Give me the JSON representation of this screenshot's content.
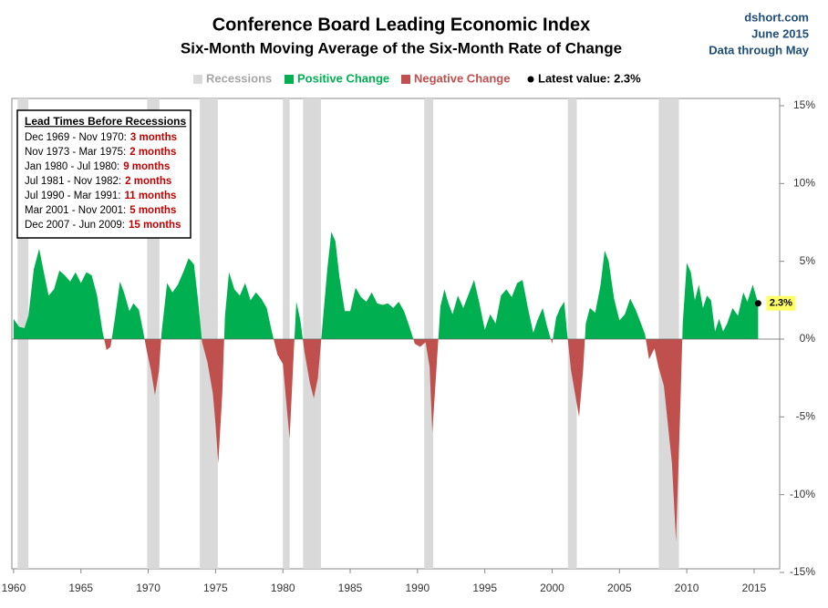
{
  "chart_data": {
    "type": "area",
    "title": "Conference Board Leading Economic Index",
    "subtitle": "Six-Month  Moving Average of the Six-Month  Rate of Change",
    "source": [
      "dshort.com",
      "June 2015",
      "Data through May"
    ],
    "legend": {
      "recessions": "Recessions",
      "positive": "Positive Change",
      "negative": "Negative Change",
      "latest": "Latest value: 2.3%"
    },
    "colors": {
      "positive": "#00b050",
      "negative": "#c0504d",
      "recession": "#d9d9d9",
      "latest": "#000000"
    },
    "recessions": [
      [
        1960.3,
        1961.1
      ],
      [
        1969.92,
        1970.83
      ],
      [
        1973.83,
        1975.17
      ],
      [
        1980.0,
        1980.5
      ],
      [
        1981.5,
        1982.83
      ],
      [
        1990.5,
        1991.17
      ],
      [
        2001.17,
        2001.83
      ],
      [
        2007.92,
        2009.42
      ]
    ],
    "lead_times": {
      "title": "Lead Times Before Recessions",
      "rows": [
        [
          "Dec 1969 - Nov 1970:",
          "3 months"
        ],
        [
          "Nov 1973 - Mar 1975:",
          "2 months"
        ],
        [
          "Jan 1980 - Jul 1980:",
          "9 months"
        ],
        [
          "Jul 1981 - Nov 1982:",
          "2 months"
        ],
        [
          "Jul 1990 - Mar 1991:",
          "11 months"
        ],
        [
          "Mar 2001 - Nov 2001:",
          "5 months"
        ],
        [
          "Dec 2007 - Jun 2009:",
          "15 months"
        ]
      ]
    },
    "annotation": {
      "value": 2.3,
      "label": "2.3%"
    },
    "x": [
      1960.0,
      1960.4,
      1960.8,
      1961.1,
      1961.5,
      1961.9,
      1962.2,
      1962.6,
      1963.0,
      1963.4,
      1963.8,
      1964.2,
      1964.6,
      1965.0,
      1965.4,
      1965.8,
      1966.2,
      1966.6,
      1966.9,
      1967.2,
      1967.5,
      1967.9,
      1968.2,
      1968.6,
      1968.9,
      1969.3,
      1969.6,
      1969.9,
      1970.2,
      1970.5,
      1970.8,
      1971.0,
      1971.4,
      1971.8,
      1972.2,
      1972.6,
      1973.0,
      1973.4,
      1973.7,
      1974.0,
      1974.4,
      1974.8,
      1975.0,
      1975.2,
      1975.5,
      1975.7,
      1976.0,
      1976.4,
      1976.8,
      1977.2,
      1977.6,
      1978.0,
      1978.4,
      1978.8,
      1979.2,
      1979.6,
      1980.0,
      1980.3,
      1980.5,
      1980.8,
      1981.0,
      1981.3,
      1981.6,
      1982.0,
      1982.3,
      1982.6,
      1982.9,
      1983.3,
      1983.6,
      1983.9,
      1984.2,
      1984.6,
      1985.0,
      1985.4,
      1985.8,
      1986.2,
      1986.6,
      1987.0,
      1987.4,
      1987.8,
      1988.2,
      1988.6,
      1989.0,
      1989.4,
      1989.8,
      1990.2,
      1990.6,
      1990.9,
      1991.1,
      1991.4,
      1991.7,
      1992.0,
      1992.3,
      1992.6,
      1993.0,
      1993.4,
      1993.8,
      1994.2,
      1994.6,
      1995.0,
      1995.4,
      1995.8,
      1996.2,
      1996.6,
      1997.0,
      1997.4,
      1997.8,
      1998.2,
      1998.6,
      1998.9,
      1999.3,
      1999.6,
      2000.0,
      2000.3,
      2000.6,
      2000.9,
      2001.1,
      2001.4,
      2001.7,
      2002.0,
      2002.3,
      2002.5,
      2002.8,
      2003.2,
      2003.6,
      2003.9,
      2004.2,
      2004.6,
      2005.0,
      2005.4,
      2005.8,
      2006.2,
      2006.6,
      2006.9,
      2007.2,
      2007.6,
      2007.9,
      2008.3,
      2008.6,
      2008.9,
      2009.2,
      2009.5,
      2009.7,
      2010.0,
      2010.3,
      2010.6,
      2010.9,
      2011.2,
      2011.5,
      2011.8,
      2012.1,
      2012.4,
      2012.7,
      2013.0,
      2013.4,
      2013.8,
      2014.2,
      2014.5,
      2014.9,
      2015.3
    ],
    "values": [
      1.3,
      0.8,
      0.7,
      1.5,
      4.5,
      5.8,
      4.5,
      2.8,
      3.2,
      4.4,
      4.1,
      3.7,
      4.3,
      3.6,
      4.3,
      4.1,
      2.8,
      0.5,
      -0.7,
      -0.5,
      1.2,
      3.7,
      3.0,
      1.8,
      2.3,
      1.9,
      0.6,
      -0.8,
      -2.0,
      -3.6,
      -2.0,
      0.5,
      3.6,
      3.0,
      3.5,
      4.3,
      5.2,
      4.8,
      2.5,
      -0.2,
      -1.5,
      -3.5,
      -5.5,
      -8.0,
      -3.5,
      1.5,
      4.3,
      3.2,
      2.8,
      3.6,
      2.5,
      3.0,
      2.6,
      2.0,
      0.4,
      -1.0,
      -1.6,
      -4.5,
      -6.4,
      -1.0,
      2.4,
      1.2,
      -0.8,
      -2.8,
      -3.8,
      -2.5,
      0.5,
      4.5,
      6.9,
      6.3,
      4.0,
      1.8,
      1.8,
      3.3,
      2.7,
      2.4,
      3.0,
      2.3,
      2.2,
      2.3,
      2.0,
      2.4,
      1.8,
      0.8,
      -0.3,
      -0.5,
      -0.2,
      -1.8,
      -6.0,
      -2.0,
      2.1,
      3.2,
      2.3,
      1.6,
      2.8,
      2.0,
      2.9,
      3.8,
      2.3,
      0.6,
      1.6,
      1.0,
      2.8,
      3.2,
      2.7,
      3.6,
      3.8,
      2.0,
      0.4,
      1.2,
      2.0,
      0.9,
      -0.3,
      1.4,
      2.0,
      2.4,
      0.5,
      -2.0,
      -3.5,
      -5.0,
      -2.0,
      1.0,
      2.0,
      1.7,
      3.5,
      5.7,
      5.0,
      2.6,
      1.2,
      1.6,
      2.6,
      1.9,
      1.0,
      0.3,
      -1.3,
      -0.6,
      -1.8,
      -3.0,
      -5.5,
      -8.0,
      -13.0,
      -5.0,
      1.0,
      4.9,
      4.3,
      2.5,
      3.5,
      2.0,
      2.8,
      2.5,
      0.5,
      1.3,
      0.5,
      1.0,
      2.0,
      1.5,
      3.0,
      2.4,
      3.5,
      2.3
    ],
    "xlim": [
      1959.87,
      2016.9
    ],
    "xticks": [
      1960,
      1965,
      1970,
      1975,
      1980,
      1985,
      1990,
      1995,
      2000,
      2005,
      2010,
      2015
    ],
    "ylim": [
      -15,
      15
    ],
    "yticks": [
      {
        "value": -15,
        "label": "-15%"
      },
      {
        "value": -10,
        "label": "-10%"
      },
      {
        "value": -5,
        "label": "-5%"
      },
      {
        "value": 0,
        "label": "0%"
      },
      {
        "value": 5,
        "label": "5%"
      },
      {
        "value": 10,
        "label": "10%"
      },
      {
        "value": 15,
        "label": "15%"
      }
    ]
  }
}
